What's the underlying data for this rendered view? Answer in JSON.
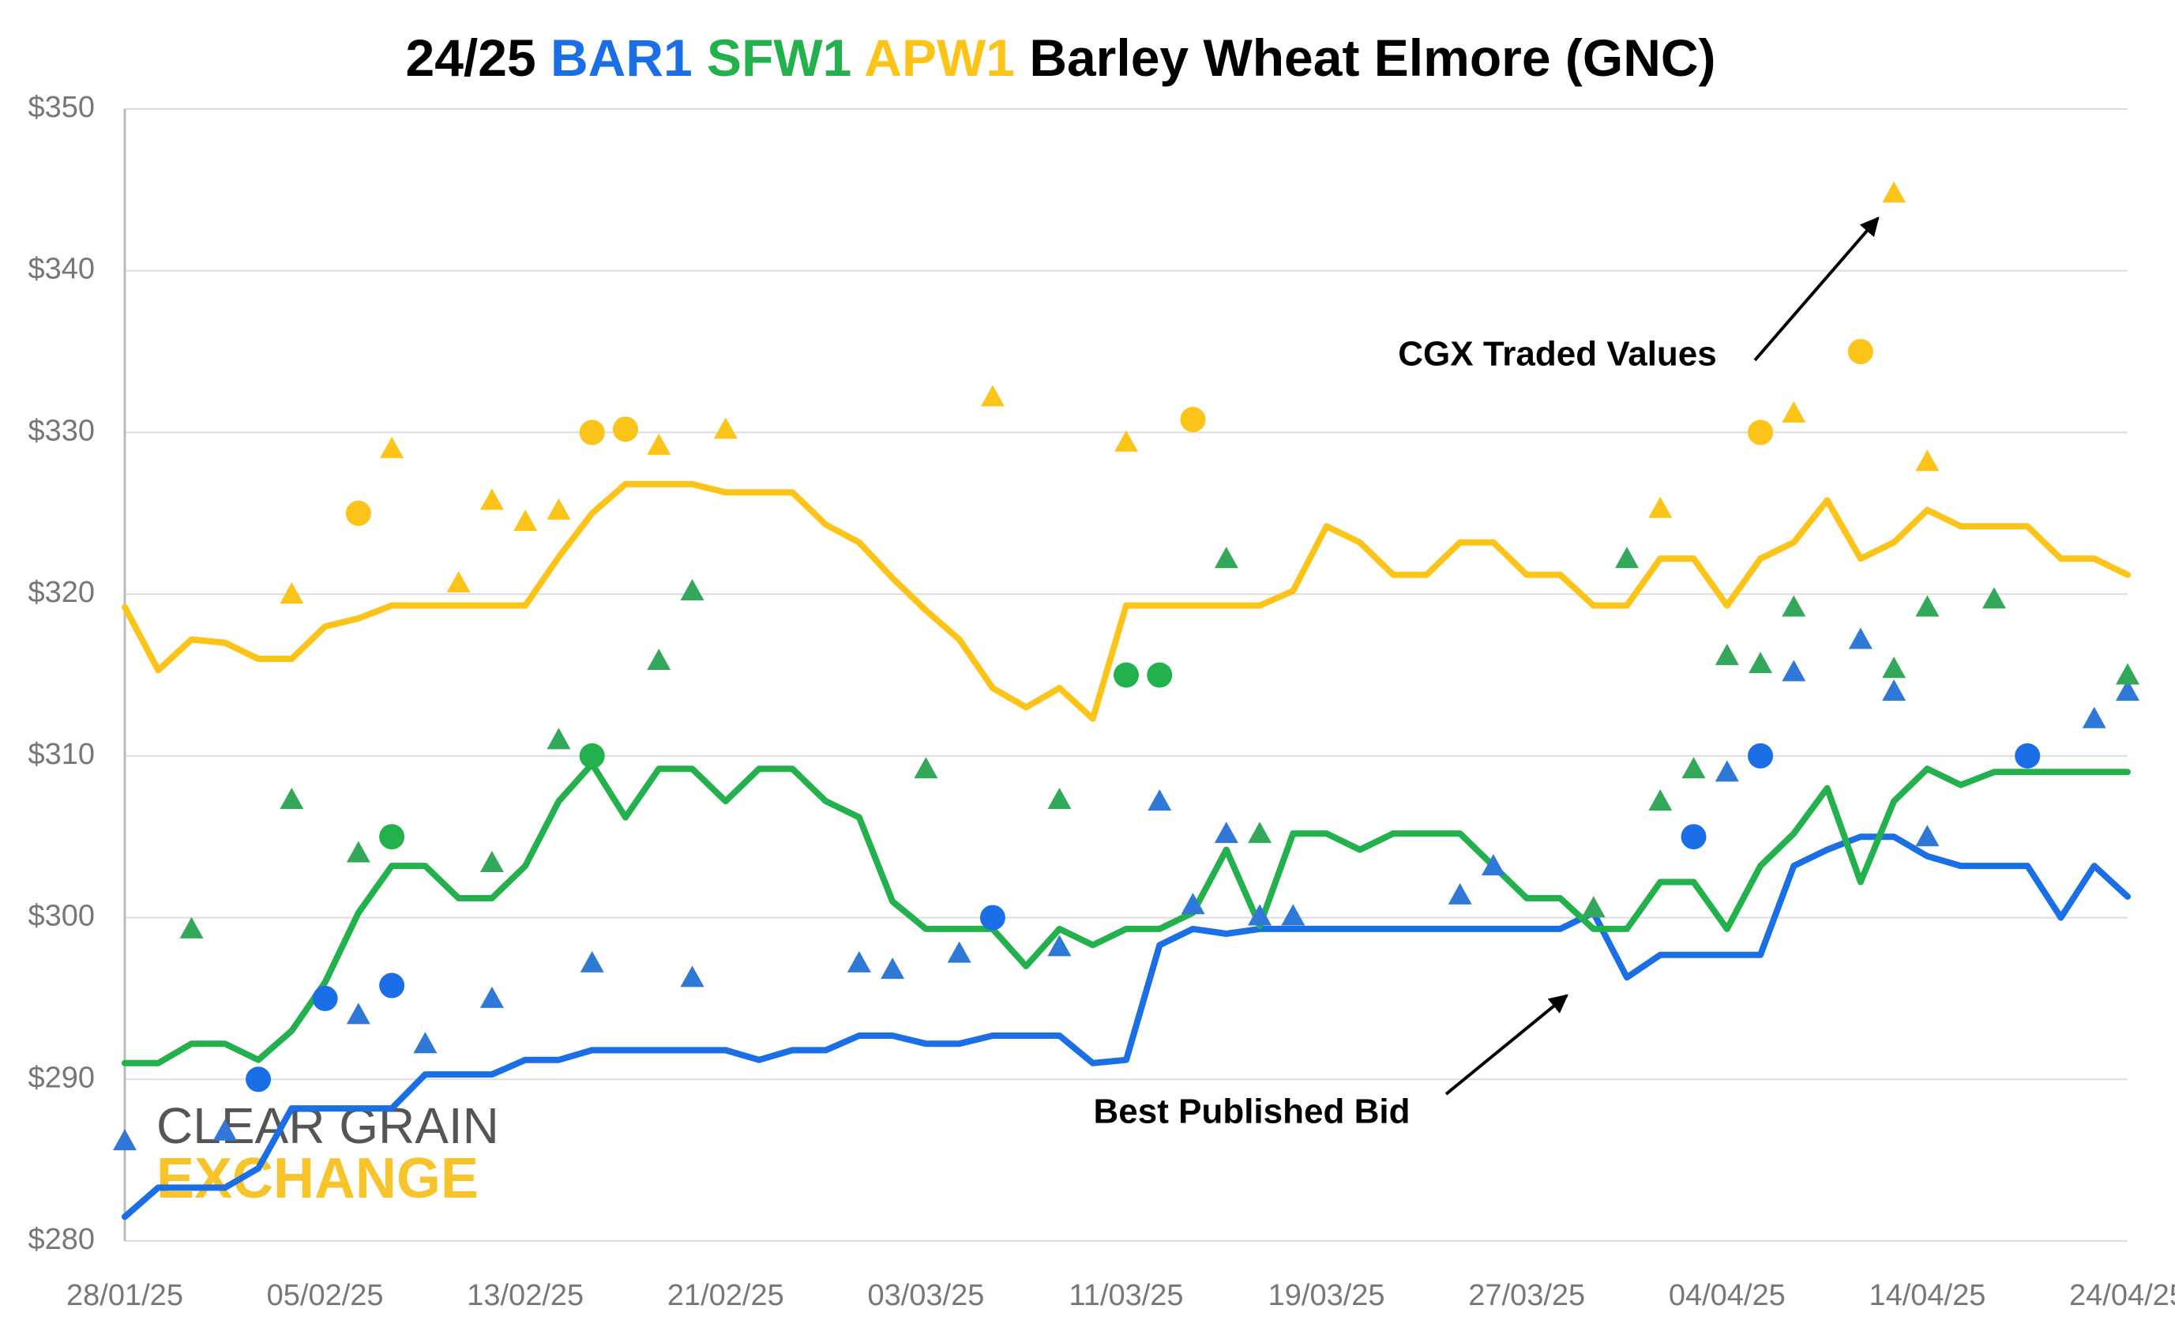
{
  "chart_data": {
    "type": "line",
    "title": {
      "lead": "24/25",
      "rest": "Barley Wheat Elmore (GNC)"
    },
    "categories": [
      "28/01/25",
      null,
      null,
      null,
      null,
      null,
      "05/02/25",
      null,
      null,
      null,
      null,
      null,
      "13/02/25",
      null,
      null,
      null,
      null,
      null,
      "21/02/25",
      null,
      null,
      null,
      null,
      null,
      "03/03/25",
      null,
      null,
      null,
      null,
      null,
      "11/03/25",
      null,
      null,
      null,
      null,
      null,
      "19/03/25",
      null,
      null,
      null,
      null,
      null,
      "27/03/25",
      null,
      null,
      null,
      null,
      null,
      "04/04/25",
      null,
      null,
      null,
      null,
      null,
      "14/04/25",
      null,
      null,
      null,
      null,
      null,
      "24/04/25"
    ],
    "ylim": [
      280,
      350
    ],
    "yticks": [
      {
        "value": 280,
        "label": "$280"
      },
      {
        "value": 290,
        "label": "$290"
      },
      {
        "value": 300,
        "label": "$300"
      },
      {
        "value": 310,
        "label": "$310"
      },
      {
        "value": 320,
        "label": "$320"
      },
      {
        "value": 330,
        "label": "$330"
      },
      {
        "value": 340,
        "label": "$340"
      },
      {
        "value": 350,
        "label": "$350"
      }
    ],
    "grid": true,
    "series": [
      {
        "name": "BAR1",
        "color": "#1a6fe6",
        "values": [
          281.5,
          283.3,
          283.3,
          283.3,
          284.5,
          288.2,
          288.2,
          288.2,
          288.2,
          290.3,
          290.3,
          290.3,
          291.2,
          291.2,
          291.8,
          291.8,
          291.8,
          291.8,
          291.8,
          291.2,
          291.8,
          291.8,
          292.7,
          292.7,
          292.2,
          292.2,
          292.7,
          292.7,
          292.7,
          291,
          291.2,
          298.3,
          299.3,
          299,
          299.3,
          299.3,
          299.3,
          299.3,
          299.3,
          299.3,
          299.3,
          299.3,
          299.3,
          299.3,
          300.3,
          296.3,
          297.7,
          297.7,
          297.7,
          297.7,
          303.2,
          304.2,
          305,
          305,
          303.8,
          303.2,
          303.2,
          303.2,
          300,
          303.2,
          301.3
        ]
      },
      {
        "name": "SFW1",
        "color": "#22b14c",
        "values": [
          291,
          291,
          292.2,
          292.2,
          291.2,
          293,
          296,
          300.3,
          303.2,
          303.2,
          301.2,
          301.2,
          303.2,
          307.2,
          309.5,
          306.2,
          309.2,
          309.2,
          307.2,
          309.2,
          309.2,
          307.2,
          306.2,
          301,
          299.3,
          299.3,
          299.3,
          297,
          299.3,
          298.3,
          299.3,
          299.3,
          300.3,
          304.2,
          299.5,
          305.2,
          305.2,
          304.2,
          305.2,
          305.2,
          305.2,
          303.2,
          301.2,
          301.2,
          299.3,
          299.3,
          302.2,
          302.2,
          299.3,
          303.2,
          305.2,
          308,
          302.2,
          307.2,
          309.2,
          308.2,
          309,
          309,
          309,
          309,
          309
        ]
      },
      {
        "name": "APW1",
        "color": "#fcc419",
        "values": [
          319.2,
          315.3,
          317.2,
          317,
          316,
          316,
          318,
          318.5,
          319.3,
          319.3,
          319.3,
          319.3,
          319.3,
          322.3,
          325,
          326.8,
          326.8,
          326.8,
          326.3,
          326.3,
          326.3,
          324.3,
          323.2,
          321,
          319,
          317.2,
          314.2,
          313,
          314.2,
          312.3,
          319.3,
          319.3,
          319.3,
          319.3,
          319.3,
          320.2,
          324.2,
          323.2,
          321.2,
          321.2,
          323.2,
          323.2,
          321.2,
          321.2,
          319.3,
          319.3,
          322.2,
          322.2,
          319.3,
          322.2,
          323.2,
          325.8,
          322.2,
          323.2,
          325.2,
          324.2,
          324.2,
          324.2,
          322.2,
          322.2,
          321.2
        ]
      }
    ],
    "traded": [
      {
        "marker": "triangle",
        "color": "#2f78d8",
        "values": [
          286.2,
          null,
          null,
          286.8,
          null,
          null,
          null,
          294,
          null,
          292.2,
          null,
          295,
          null,
          null,
          297.2,
          null,
          null,
          296.3,
          null,
          null,
          null,
          null,
          297.2,
          296.8,
          null,
          297.8,
          null,
          null,
          298.2,
          null,
          null,
          307.2,
          300.8,
          305.2,
          300.1,
          300.1,
          null,
          null,
          null,
          null,
          301.4,
          303.2,
          null,
          null,
          null,
          null,
          null,
          null,
          309,
          null,
          315.2,
          null,
          317.2,
          314,
          305,
          null,
          null,
          null,
          null,
          312.3,
          314
        ]
      },
      {
        "marker": "circle",
        "color": "#1a6fe6",
        "values": [
          null,
          null,
          null,
          null,
          290,
          null,
          295,
          null,
          295.8,
          null,
          null,
          null,
          null,
          null,
          null,
          null,
          null,
          null,
          null,
          null,
          null,
          null,
          null,
          null,
          null,
          null,
          300,
          null,
          null,
          null,
          null,
          null,
          null,
          null,
          null,
          null,
          null,
          null,
          null,
          null,
          null,
          null,
          null,
          null,
          null,
          null,
          null,
          305,
          null,
          310,
          null,
          null,
          null,
          null,
          null,
          null,
          null,
          310,
          null,
          null,
          null
        ]
      },
      {
        "marker": "triangle",
        "color": "#33a85a",
        "values": [
          null,
          null,
          299.3,
          null,
          null,
          307.3,
          null,
          304,
          null,
          null,
          null,
          303.4,
          null,
          311,
          null,
          null,
          315.9,
          320.2,
          null,
          null,
          null,
          null,
          null,
          null,
          309.2,
          null,
          null,
          null,
          307.3,
          null,
          null,
          null,
          null,
          322.2,
          305.2,
          null,
          null,
          null,
          null,
          null,
          null,
          null,
          null,
          null,
          300.6,
          322.2,
          307.2,
          309.2,
          316.2,
          315.7,
          319.2,
          null,
          null,
          315.4,
          319.2,
          null,
          319.7,
          null,
          null,
          null,
          315
        ]
      },
      {
        "marker": "circle",
        "color": "#22b14c",
        "values": [
          null,
          null,
          null,
          null,
          null,
          null,
          null,
          null,
          305,
          null,
          null,
          null,
          null,
          null,
          310,
          null,
          null,
          null,
          null,
          null,
          null,
          null,
          null,
          null,
          null,
          null,
          null,
          null,
          null,
          null,
          315,
          315,
          null,
          null,
          null,
          null,
          null,
          null,
          null,
          null,
          null,
          null,
          null,
          null,
          null,
          null,
          null,
          null,
          null,
          null,
          null,
          null,
          null,
          null,
          null,
          null,
          null,
          null,
          null,
          null,
          null
        ]
      },
      {
        "marker": "triangle",
        "color": "#fcc419",
        "values": [
          null,
          null,
          null,
          null,
          null,
          320,
          null,
          null,
          329,
          null,
          320.7,
          325.8,
          324.5,
          325.2,
          null,
          null,
          329.2,
          null,
          330.2,
          null,
          null,
          null,
          null,
          null,
          null,
          null,
          332.2,
          null,
          null,
          null,
          329.4,
          null,
          null,
          null,
          null,
          null,
          null,
          null,
          null,
          null,
          null,
          null,
          null,
          null,
          null,
          null,
          325.3,
          null,
          null,
          null,
          331.2,
          null,
          null,
          344.8,
          328.2,
          null,
          null,
          null,
          null,
          null,
          null
        ]
      },
      {
        "marker": "circle",
        "color": "#fcc419",
        "values": [
          null,
          null,
          null,
          null,
          null,
          null,
          null,
          325,
          null,
          null,
          null,
          null,
          null,
          null,
          330,
          330.2,
          null,
          null,
          null,
          null,
          null,
          null,
          null,
          null,
          null,
          null,
          null,
          null,
          null,
          null,
          null,
          null,
          330.8,
          null,
          null,
          null,
          null,
          null,
          null,
          null,
          null,
          null,
          null,
          null,
          null,
          null,
          null,
          null,
          null,
          330,
          null,
          null,
          335,
          null,
          null,
          null,
          null,
          null,
          null,
          null,
          null
        ]
      }
    ],
    "annotations": {
      "traded": "CGX Traded Values",
      "bid": "Best Published Bid"
    },
    "logo": {
      "top": "CLEAR GRAIN",
      "bottom": "EXCHANGE"
    }
  }
}
